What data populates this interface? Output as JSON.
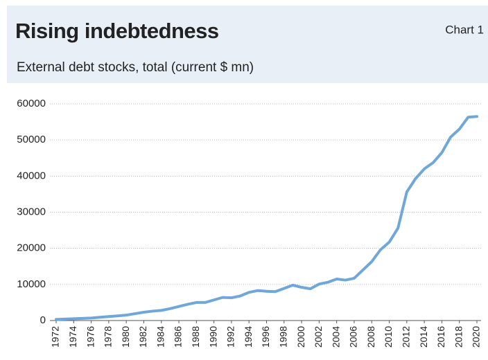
{
  "chart_data": {
    "type": "line",
    "title": "Rising indebtedness",
    "chart_label": "Chart 1",
    "subtitle": "External debt stocks, total (current $ mn)",
    "x": [
      1972,
      1973,
      1974,
      1975,
      1976,
      1977,
      1978,
      1979,
      1980,
      1981,
      1982,
      1983,
      1984,
      1985,
      1986,
      1987,
      1988,
      1989,
      1990,
      1991,
      1992,
      1993,
      1994,
      1995,
      1996,
      1997,
      1998,
      1999,
      2000,
      2001,
      2002,
      2003,
      2004,
      2005,
      2006,
      2007,
      2008,
      2009,
      2010,
      2011,
      2012,
      2013,
      2014,
      2015,
      2016,
      2017,
      2018,
      2019,
      2020
    ],
    "series": [
      {
        "color": "#6ea7d8",
        "values": [
          300,
          400,
          500,
          600,
          700,
          900,
          1100,
          1300,
          1500,
          1900,
          2300,
          2600,
          2800,
          3300,
          3900,
          4500,
          5000,
          5000,
          5700,
          6400,
          6300,
          6800,
          7800,
          8300,
          8100,
          8000,
          8900,
          9800,
          9200,
          8800,
          10100,
          10600,
          11500,
          11200,
          11700,
          14000,
          16300,
          19600,
          21700,
          25600,
          35600,
          39300,
          42000,
          43700,
          46500,
          50800,
          53000,
          56300,
          56500
        ]
      }
    ],
    "xlim": [
      1972,
      2020
    ],
    "xticks": [
      1972,
      1974,
      1976,
      1978,
      1980,
      1982,
      1984,
      1986,
      1988,
      1990,
      1992,
      1994,
      1996,
      1998,
      2000,
      2002,
      2004,
      2006,
      2008,
      2010,
      2012,
      2014,
      2016,
      2018,
      2020
    ],
    "ylim": [
      0,
      60000
    ],
    "yticks": [
      0,
      10000,
      20000,
      30000,
      40000,
      50000,
      60000
    ],
    "grid": true
  }
}
